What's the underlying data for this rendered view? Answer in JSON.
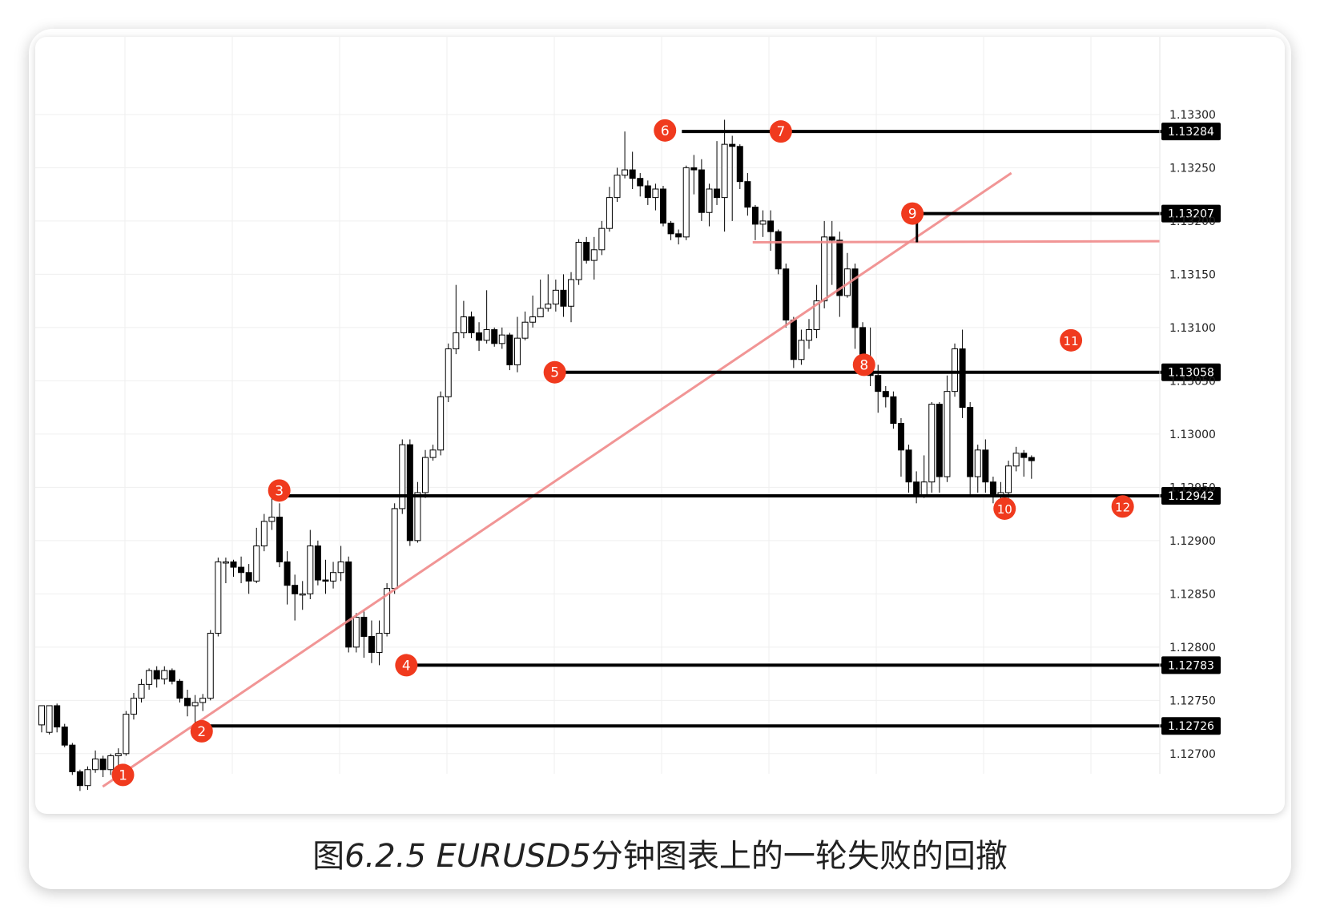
{
  "chart_data": {
    "type": "candlestick",
    "ylim": [
      1.1266,
      1.1333
    ],
    "y_ticks": [
      "1.12700",
      "1.12750",
      "1.12800",
      "1.12850",
      "1.12900",
      "1.12950",
      "1.13000",
      "1.13050",
      "1.13100",
      "1.13150",
      "1.13200",
      "1.13250",
      "1.13300"
    ],
    "grid": true,
    "candles": [
      [
        1.12727,
        1.12745,
        1.12745,
        1.1272
      ],
      [
        1.1272,
        1.12745,
        1.12745,
        1.12718
      ],
      [
        1.12745,
        1.12725,
        1.12747,
        1.1272
      ],
      [
        1.12725,
        1.12708,
        1.12728,
        1.12706
      ],
      [
        1.12708,
        1.12683,
        1.1271,
        1.1268
      ],
      [
        1.12683,
        1.1267,
        1.12685,
        1.12665
      ],
      [
        1.1267,
        1.12685,
        1.12688,
        1.12666
      ],
      [
        1.12685,
        1.12695,
        1.12703,
        1.12682
      ],
      [
        1.12695,
        1.12685,
        1.12698,
        1.12678
      ],
      [
        1.12685,
        1.12698,
        1.127,
        1.1268
      ],
      [
        1.12698,
        1.127,
        1.12705,
        1.12685
      ],
      [
        1.127,
        1.12737,
        1.1274,
        1.12698
      ],
      [
        1.12737,
        1.12752,
        1.12757,
        1.12732
      ],
      [
        1.12752,
        1.12765,
        1.1277,
        1.12748
      ],
      [
        1.12765,
        1.12778,
        1.1278,
        1.1276
      ],
      [
        1.12778,
        1.1277,
        1.12782,
        1.12762
      ],
      [
        1.1277,
        1.12778,
        1.12782,
        1.12765
      ],
      [
        1.12778,
        1.12768,
        1.1278,
        1.12765
      ],
      [
        1.12768,
        1.12752,
        1.1277,
        1.12748
      ],
      [
        1.12752,
        1.12745,
        1.1276,
        1.12735
      ],
      [
        1.12745,
        1.12748,
        1.12755,
        1.12726
      ],
      [
        1.12748,
        1.12752,
        1.12756,
        1.1274
      ],
      [
        1.12752,
        1.12813,
        1.12816,
        1.1275
      ],
      [
        1.12813,
        1.1288,
        1.12884,
        1.1281
      ],
      [
        1.1288,
        1.1288,
        1.12884,
        1.1286
      ],
      [
        1.1288,
        1.12875,
        1.12882,
        1.12866
      ],
      [
        1.12875,
        1.1287,
        1.12885,
        1.1286
      ],
      [
        1.1287,
        1.12862,
        1.12878,
        1.1285
      ],
      [
        1.12862,
        1.12895,
        1.12912,
        1.1286
      ],
      [
        1.12895,
        1.12918,
        1.12925,
        1.1289
      ],
      [
        1.12918,
        1.12922,
        1.12942,
        1.1291
      ],
      [
        1.12922,
        1.1288,
        1.12935,
        1.12875
      ],
      [
        1.1288,
        1.12858,
        1.1289,
        1.1284
      ],
      [
        1.12858,
        1.1285,
        1.12868,
        1.12825
      ],
      [
        1.1285,
        1.1285,
        1.12862,
        1.12835
      ],
      [
        1.1285,
        1.12895,
        1.1291,
        1.12845
      ],
      [
        1.12895,
        1.12863,
        1.129,
        1.12858
      ],
      [
        1.12863,
        1.12862,
        1.12882,
        1.1285
      ],
      [
        1.12862,
        1.1287,
        1.1288,
        1.12855
      ],
      [
        1.1287,
        1.1288,
        1.12895,
        1.12862
      ],
      [
        1.1288,
        1.128,
        1.12885,
        1.12795
      ],
      [
        1.128,
        1.12828,
        1.12832,
        1.12795
      ],
      [
        1.12828,
        1.1281,
        1.12835,
        1.1279
      ],
      [
        1.1281,
        1.12795,
        1.12825,
        1.12785
      ],
      [
        1.12795,
        1.12813,
        1.12825,
        1.12783
      ],
      [
        1.12813,
        1.12855,
        1.1286,
        1.1281
      ],
      [
        1.12855,
        1.1293,
        1.12935,
        1.1285
      ],
      [
        1.1293,
        1.1299,
        1.12995,
        1.12925
      ],
      [
        1.1299,
        1.129,
        1.12995,
        1.12895
      ],
      [
        1.129,
        1.12945,
        1.12955,
        1.12898
      ],
      [
        1.12945,
        1.12978,
        1.12985,
        1.1294
      ],
      [
        1.12978,
        1.12985,
        1.1299,
        1.12975
      ],
      [
        1.12985,
        1.13035,
        1.1304,
        1.1298
      ],
      [
        1.13035,
        1.1308,
        1.13085,
        1.1303
      ],
      [
        1.1308,
        1.13095,
        1.1314,
        1.13075
      ],
      [
        1.13095,
        1.1311,
        1.13125,
        1.1309
      ],
      [
        1.1311,
        1.13095,
        1.13115,
        1.1309
      ],
      [
        1.13095,
        1.13088,
        1.13105,
        1.13078
      ],
      [
        1.13088,
        1.13098,
        1.13135,
        1.13085
      ],
      [
        1.13098,
        1.13085,
        1.131,
        1.13082
      ],
      [
        1.13085,
        1.13093,
        1.131,
        1.1308
      ],
      [
        1.13093,
        1.13065,
        1.13095,
        1.1306
      ],
      [
        1.13065,
        1.1309,
        1.1311,
        1.13058
      ],
      [
        1.1309,
        1.13105,
        1.13115,
        1.13088
      ],
      [
        1.13105,
        1.1311,
        1.1313,
        1.131
      ],
      [
        1.1311,
        1.13118,
        1.13145,
        1.1311
      ],
      [
        1.13118,
        1.13122,
        1.1315,
        1.13115
      ],
      [
        1.13122,
        1.13135,
        1.13145,
        1.13115
      ],
      [
        1.13135,
        1.1312,
        1.1315,
        1.1311
      ],
      [
        1.1312,
        1.13145,
        1.13152,
        1.13105
      ],
      [
        1.13145,
        1.1318,
        1.13183,
        1.1314
      ],
      [
        1.1318,
        1.13163,
        1.13185,
        1.1316
      ],
      [
        1.13163,
        1.13173,
        1.13185,
        1.13145
      ],
      [
        1.13173,
        1.13193,
        1.132,
        1.13168
      ],
      [
        1.13193,
        1.13222,
        1.13232,
        1.1319
      ],
      [
        1.13222,
        1.13243,
        1.1325,
        1.13218
      ],
      [
        1.13243,
        1.13248,
        1.13284,
        1.1324
      ],
      [
        1.13248,
        1.1324,
        1.13265,
        1.1323
      ],
      [
        1.1324,
        1.13233,
        1.13245,
        1.13223
      ],
      [
        1.13233,
        1.13222,
        1.13238,
        1.13215
      ],
      [
        1.13222,
        1.1323,
        1.13235,
        1.1321
      ],
      [
        1.1323,
        1.13198,
        1.13233,
        1.13195
      ],
      [
        1.13198,
        1.13188,
        1.132,
        1.13182
      ],
      [
        1.13188,
        1.13185,
        1.13192,
        1.13178
      ],
      [
        1.13185,
        1.1325,
        1.13252,
        1.13182
      ],
      [
        1.1325,
        1.13248,
        1.13262,
        1.13225
      ],
      [
        1.13248,
        1.13208,
        1.13258,
        1.132
      ],
      [
        1.13208,
        1.1323,
        1.13235,
        1.13195
      ],
      [
        1.1323,
        1.13222,
        1.13275,
        1.13215
      ],
      [
        1.13222,
        1.13272,
        1.13295,
        1.1319
      ],
      [
        1.13272,
        1.1327,
        1.1328,
        1.132
      ],
      [
        1.1327,
        1.13237,
        1.13272,
        1.1323
      ],
      [
        1.13237,
        1.13213,
        1.13245,
        1.13205
      ],
      [
        1.13213,
        1.13197,
        1.13215,
        1.13182
      ],
      [
        1.13197,
        1.132,
        1.1321,
        1.13185
      ],
      [
        1.132,
        1.1319,
        1.1321,
        1.13172
      ],
      [
        1.1319,
        1.13155,
        1.13192,
        1.1315
      ],
      [
        1.13155,
        1.13107,
        1.1316,
        1.131
      ],
      [
        1.13107,
        1.1307,
        1.1311,
        1.13062
      ],
      [
        1.1307,
        1.13088,
        1.13098,
        1.13065
      ],
      [
        1.13088,
        1.13098,
        1.13108,
        1.1308
      ],
      [
        1.13098,
        1.13125,
        1.1314,
        1.1309
      ],
      [
        1.13125,
        1.13185,
        1.132,
        1.13118
      ],
      [
        1.13185,
        1.13182,
        1.132,
        1.1314
      ],
      [
        1.13182,
        1.1313,
        1.1319,
        1.1311
      ],
      [
        1.1313,
        1.13155,
        1.1317,
        1.13128
      ],
      [
        1.13155,
        1.131,
        1.1316,
        1.1308
      ],
      [
        1.131,
        1.13065,
        1.13105,
        1.1306
      ],
      [
        1.13065,
        1.13055,
        1.131,
        1.13045
      ],
      [
        1.13055,
        1.1304,
        1.13065,
        1.1302
      ],
      [
        1.1304,
        1.13035,
        1.13045,
        1.13025
      ],
      [
        1.13035,
        1.1301,
        1.1304,
        1.13005
      ],
      [
        1.1301,
        1.12985,
        1.13015,
        1.1296
      ],
      [
        1.12985,
        1.12955,
        1.1299,
        1.12945
      ],
      [
        1.12955,
        1.12942,
        1.12965,
        1.12935
      ],
      [
        1.12942,
        1.12955,
        1.1298,
        1.1294
      ],
      [
        1.12955,
        1.13028,
        1.1303,
        1.12945
      ],
      [
        1.13028,
        1.1296,
        1.1303,
        1.12945
      ],
      [
        1.1296,
        1.1304,
        1.13055,
        1.12955
      ],
      [
        1.1304,
        1.1308,
        1.13085,
        1.13035
      ],
      [
        1.1308,
        1.13025,
        1.13098,
        1.13015
      ],
      [
        1.13025,
        1.1296,
        1.1303,
        1.12942
      ],
      [
        1.1296,
        1.12985,
        1.1299,
        1.12945
      ],
      [
        1.12985,
        1.12955,
        1.12995,
        1.12945
      ],
      [
        1.12955,
        1.12942,
        1.1296,
        1.12935
      ],
      [
        1.12942,
        1.12945,
        1.12955,
        1.12935
      ],
      [
        1.12945,
        1.1297,
        1.12975,
        1.1294
      ],
      [
        1.1297,
        1.12982,
        1.12988,
        1.12965
      ],
      [
        1.12982,
        1.12978,
        1.12985,
        1.1296
      ],
      [
        1.12978,
        1.12975,
        1.1298,
        1.12958
      ]
    ],
    "horizontal_levels": [
      {
        "label": "1.13284",
        "value": 1.13284
      },
      {
        "label": "1.13207",
        "value": 1.13207
      },
      {
        "label": "1.13058",
        "value": 1.13058
      },
      {
        "label": "1.12942",
        "value": 1.12942
      },
      {
        "label": "1.12783",
        "value": 1.12783
      },
      {
        "label": "1.12726",
        "value": 1.12726
      }
    ],
    "trendlines": [
      {
        "from": [
          0.06,
          1.12669
        ],
        "to": [
          0.868,
          1.13245
        ],
        "color": "#f08a8a"
      },
      {
        "from": [
          0.638,
          1.1318
        ],
        "to": [
          1.0,
          1.13181
        ],
        "color": "#f08a8a"
      }
    ],
    "markers": [
      {
        "label": "1",
        "x": 0.078,
        "y": 1.1268
      },
      {
        "label": "2",
        "x": 0.148,
        "y": 1.12721
      },
      {
        "label": "3",
        "x": 0.217,
        "y": 1.12947
      },
      {
        "label": "4",
        "x": 0.33,
        "y": 1.12783
      },
      {
        "label": "5",
        "x": 0.462,
        "y": 1.13058
      },
      {
        "label": "6",
        "x": 0.56,
        "y": 1.13285
      },
      {
        "label": "7",
        "x": 0.663,
        "y": 1.13284
      },
      {
        "label": "8",
        "x": 0.737,
        "y": 1.13065
      },
      {
        "label": "9",
        "x": 0.78,
        "y": 1.13207
      },
      {
        "label": "10",
        "x": 0.862,
        "y": 1.1293
      },
      {
        "label": "11",
        "x": 0.921,
        "y": 1.13088
      },
      {
        "label": "12",
        "x": 0.967,
        "y": 1.12932
      }
    ],
    "colors": {
      "up_fill": "#ffffff",
      "down_fill": "#000000",
      "trendline": "#f08a8a",
      "marker": "#f03a1e",
      "level": "#000000"
    }
  },
  "caption": {
    "prefix": "图",
    "number": "6.2.5 EURUSD5",
    "suffix": "分钟图表上的一轮失败的回撤"
  }
}
